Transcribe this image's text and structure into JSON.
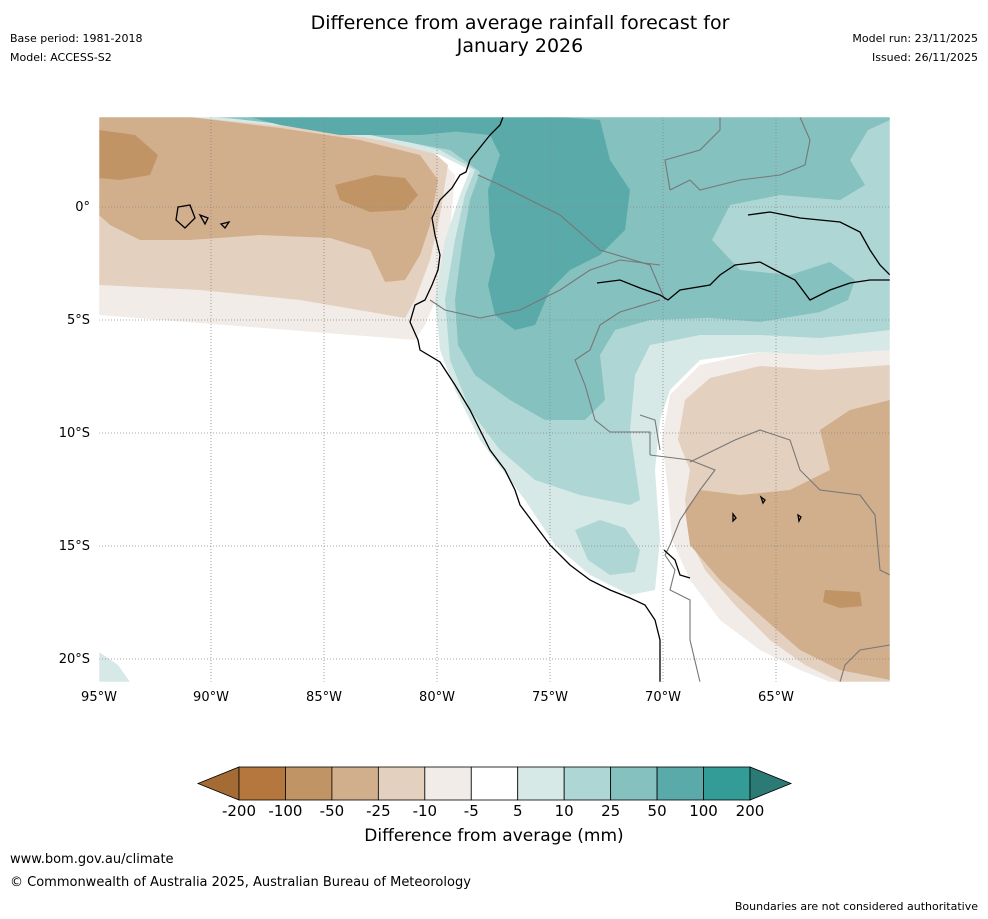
{
  "header": {
    "title_line1": "Difference from average rainfall forecast for",
    "title_line2": "January 2026",
    "base_period": "Base period: 1981-2018",
    "model": "Model: ACCESS-S2",
    "model_run": "Model run: 23/11/2025",
    "issued": "Issued: 26/11/2025"
  },
  "map": {
    "lat_labels": [
      "0°",
      "5°S",
      "10°S",
      "15°S",
      "20°S"
    ],
    "lon_labels": [
      "95°W",
      "90°W",
      "85°W",
      "80°W",
      "75°W",
      "70°W",
      "65°W"
    ]
  },
  "colorbar": {
    "title": "Difference from average (mm)",
    "ticks": [
      "-200",
      "-100",
      "-50",
      "-25",
      "-10",
      "-5",
      "5",
      "10",
      "25",
      "50",
      "100",
      "200"
    ],
    "colors": [
      "#a46b35",
      "#b5773d",
      "#c19466",
      "#d1ae8c",
      "#e4d0bf",
      "#f1ece7",
      "#ffffff",
      "#d6e9e7",
      "#aed6d4",
      "#85c1bf",
      "#5aaaa9",
      "#349c97",
      "#2b7a76"
    ]
  },
  "footer": {
    "url": "www.bom.gov.au/climate",
    "copyright": "© Commonwealth of Australia 2025, Australian Bureau of Meteorology",
    "note": "Boundaries are not considered authoritative"
  }
}
